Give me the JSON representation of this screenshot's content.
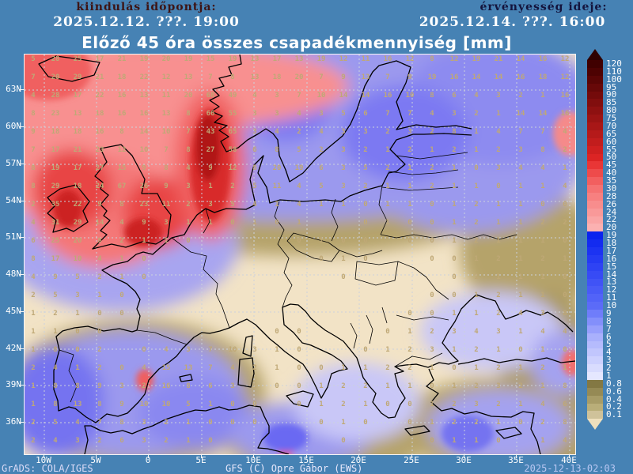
{
  "header": {
    "left_label": "kiindulás időpontja:",
    "left_value": "2025.12.12. ???. 19:00",
    "right_label": "érvényesség ideje:",
    "right_value": "2025.12.14. ???. 16:00"
  },
  "title": "Előző 45 óra összes csapadékmennyiség [mm]",
  "footer": {
    "left": "GrADS: COLA/IGES",
    "center": "GFS (C) Opre Gábor (EWS)",
    "right": "2025-12-13-02:03"
  },
  "map": {
    "lat_labels": [
      "63N",
      "60N",
      "57N",
      "54N",
      "51N",
      "48N",
      "45N",
      "42N",
      "39N",
      "36N"
    ],
    "lon_labels": [
      "10W",
      "5W",
      "0",
      "5E",
      "10E",
      "15E",
      "20E",
      "25E",
      "30E",
      "35E",
      "40E"
    ],
    "values_rows": [
      "5 28 25 17 21 19 20 19 15 19 13 17 13 19 12 11 16 12 8 12 19 21 14 16 12",
      "7 20 29 21 18 22 12 13 7 8 13 18 20 7 9 13 7 9 19 16 14 14 16 18 12",
      "4 28 17 22 16 13 11 20 68 49 4 3 7 10 14 14 16 10 8 6 4 3 2 1 16",
      "8 23 13 18 16 16 13 8 66 55 3 3 4 3 5 6 7 7 4 3 2 1 14 14 16",
      "9 18 18 16 8 14 10 7 43 65 3 4 2 4 3 3 2 3 2 8 1 4 7 7 4",
      "7 17 21 23 12 10 7 8 27 58 6 8 5 2 3 2 1 2 1 2 1 2 3 8 2",
      "8 19 17 27 15 9 8 4 9 12 8 20 19 6 3 5 2 1 2 1 0 3 4 4 1",
      "8 29 18 24 67 26 9 3 1 2 5 11 4 5 3 2 1 1 2 1 1 0 1 1 4",
      "2 35 22 9 8 23 11 2 3 5 4 1 4 1 1 0 1 1 0 1 2 1 1 0 0",
      "4 31 29 14 4 9 3 1 1 0 1 0 1 . . 0 1 0 0 1 2 1 1 2 2",
      "6 25 20 8 2 1 1 0 . . . . 0 1 0 0 . 0 0 1 2 1 1 1 0",
      "8 17 10 4 1 0 . . . . . . . 0 1 0 . . 0 0 1 2 1 2 1",
      "4 9 5 2 1 0 . . . . . . . . 0 . . . . 0 1 1 1 1 0",
      "2 5 3 1 0 . . . . . . . . . . . . . 0 0 1 2 1 1 0",
      "1 2 1 0 0 . . . . . . . . . . . . 0 0 1 1 2 4 3 8",
      "1 1 0 0 . . . . . . . 0 0 . . . 0 1 2 3 4 3 1 4 4",
      "1 8 0 2 . 0 4 3 7 10 3 1 0 . . 0 1 2 3 1 2 1 0 1 0",
      "2 4 1 2 0 4 15 13 7 4 2 1 0 0 1 1 2 2 1 0 1 2 1 2 1",
      "1 8 8 9 3 2 16 8 6 3 1 0 0 1 2 2 1 1 0 1 2 3 2 1 8",
      "1 8 13 8 9 10 10 5 1 0 0 . 0 1 2 1 0 0 1 2 3 2 1 4 6",
      "2 5 4 7 8 3 2 1 0 0 0 . . 0 1 0 . 0 1 2 2 1 0 2 8",
      "2 4 3 2 6 3 2 1 0 . . . . . 0 . . . 0 1 1 0 . 1 4"
    ]
  },
  "colorbar": {
    "over_color": "#2e0000",
    "under_color": "#efe0bd",
    "levels": [
      {
        "label": "120",
        "color": "#400000"
      },
      {
        "label": "110",
        "color": "#4d0202"
      },
      {
        "label": "100",
        "color": "#5a0505"
      },
      {
        "label": "95",
        "color": "#670808"
      },
      {
        "label": "90",
        "color": "#740b0b"
      },
      {
        "label": "85",
        "color": "#810e0e"
      },
      {
        "label": "80",
        "color": "#8e1111"
      },
      {
        "label": "75",
        "color": "#9b1414"
      },
      {
        "label": "70",
        "color": "#a81717"
      },
      {
        "label": "65",
        "color": "#b51a1a"
      },
      {
        "label": "60",
        "color": "#c21d1d"
      },
      {
        "label": "55",
        "color": "#cf2020"
      },
      {
        "label": "50",
        "color": "#dc2424"
      },
      {
        "label": "45",
        "color": "#e93636"
      },
      {
        "label": "40",
        "color": "#ee4b4b"
      },
      {
        "label": "35",
        "color": "#f25f5f"
      },
      {
        "label": "30",
        "color": "#f57272"
      },
      {
        "label": "28",
        "color": "#f78080"
      },
      {
        "label": "26",
        "color": "#f88d8d"
      },
      {
        "label": "24",
        "color": "#f99999"
      },
      {
        "label": "22",
        "color": "#faa5a5"
      },
      {
        "label": "20",
        "color": "#fbb1b1"
      },
      {
        "label": "19",
        "color": "#0a23ee"
      },
      {
        "label": "18",
        "color": "#132bf0"
      },
      {
        "label": "17",
        "color": "#1c33f2"
      },
      {
        "label": "16",
        "color": "#253bf3"
      },
      {
        "label": "15",
        "color": "#2e43f4"
      },
      {
        "label": "14",
        "color": "#374bf5"
      },
      {
        "label": "13",
        "color": "#4053f6"
      },
      {
        "label": "12",
        "color": "#495bf7"
      },
      {
        "label": "11",
        "color": "#5263f8"
      },
      {
        "label": "10",
        "color": "#5b6bf8"
      },
      {
        "label": "9",
        "color": "#6f7dfa"
      },
      {
        "label": "8",
        "color": "#838ffb"
      },
      {
        "label": "7",
        "color": "#979ffc"
      },
      {
        "label": "6",
        "color": "#a9b0fc"
      },
      {
        "label": "5",
        "color": "#b5bbfd"
      },
      {
        "label": "4",
        "color": "#c1c6fd"
      },
      {
        "label": "3",
        "color": "#cdd1fe"
      },
      {
        "label": "2",
        "color": "#d9dcfe"
      },
      {
        "label": "1",
        "color": "#e5e7ff"
      },
      {
        "label": "0.8",
        "color": "#837843"
      },
      {
        "label": "0.6",
        "color": "#958a55"
      },
      {
        "label": "0.4",
        "color": "#a79c67"
      },
      {
        "label": "0.2",
        "color": "#b9ae79"
      },
      {
        "label": "0.1",
        "color": "#cfc29a"
      }
    ]
  },
  "colors": {
    "background": "#4682b4",
    "map_background": "#f2e3c6",
    "header_left": "#3d1414",
    "header_right": "#14143d",
    "coastline": "#000000",
    "grid": "#ccd2dc",
    "value_text": "#bfa876",
    "footer_left": "#dcdcf8",
    "footer_center": "#e8e8fc",
    "footer_right": "#b9c7f2"
  }
}
